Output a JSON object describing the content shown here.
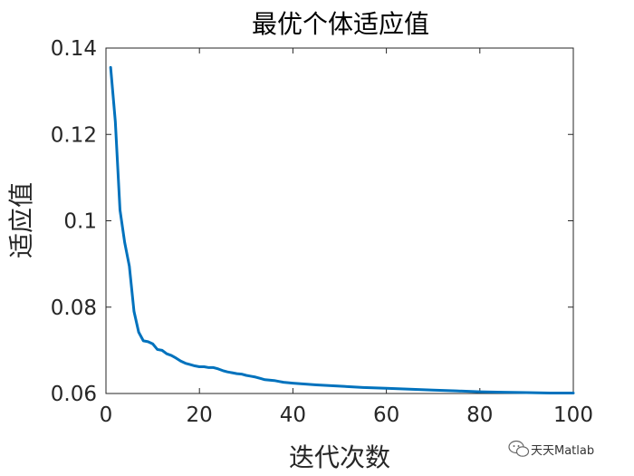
{
  "chart_data": {
    "type": "line",
    "title": "最优个体适应值",
    "xlabel": "迭代次数",
    "ylabel": "适应值",
    "xlim": [
      0,
      100
    ],
    "ylim": [
      0.06,
      0.14
    ],
    "xticks": [
      "0",
      "20",
      "40",
      "60",
      "80",
      "100"
    ],
    "yticks": [
      "0.06",
      "0.08",
      "0.1",
      "0.12",
      "0.14"
    ],
    "grid": false,
    "line_color": "#0072BD",
    "series": [
      {
        "x": [
          1,
          2,
          3,
          4,
          5,
          6,
          7,
          8,
          9,
          10,
          11,
          12,
          13,
          14,
          15,
          16,
          17,
          18,
          19,
          20,
          21,
          22,
          23,
          24,
          25,
          26,
          27,
          28,
          29,
          30,
          31,
          32,
          33,
          34,
          35,
          36,
          37,
          38,
          39,
          40,
          45,
          50,
          55,
          60,
          65,
          70,
          75,
          80,
          85,
          90,
          95,
          100
        ],
        "values": [
          0.1355,
          0.123,
          0.1025,
          0.095,
          0.0895,
          0.079,
          0.0742,
          0.0722,
          0.072,
          0.0715,
          0.0702,
          0.07,
          0.0692,
          0.0688,
          0.0682,
          0.0675,
          0.067,
          0.0667,
          0.0664,
          0.0662,
          0.0662,
          0.066,
          0.066,
          0.0657,
          0.0653,
          0.065,
          0.0648,
          0.0646,
          0.0645,
          0.0642,
          0.064,
          0.0638,
          0.0635,
          0.0632,
          0.0631,
          0.063,
          0.0628,
          0.0626,
          0.0625,
          0.0624,
          0.062,
          0.0617,
          0.0614,
          0.0612,
          0.061,
          0.0608,
          0.0606,
          0.0604,
          0.0603,
          0.0602,
          0.0601,
          0.0601
        ]
      }
    ]
  },
  "watermark": {
    "text": "天天Matlab",
    "icon": "wechat-icon"
  }
}
